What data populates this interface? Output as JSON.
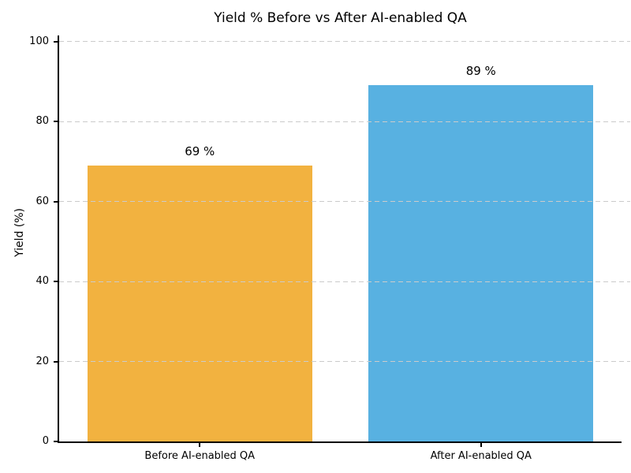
{
  "chart_data": {
    "type": "bar",
    "title": "Yield % Before vs After AI-enabled QA",
    "ylabel": "Yield (%)",
    "xlabel": "",
    "categories": [
      "Before AI-enabled QA",
      "After AI-enabled QA"
    ],
    "values": [
      69,
      89
    ],
    "value_labels": [
      "69 %",
      "89 %"
    ],
    "bar_colors": [
      "#F2B240",
      "#58B1E1"
    ],
    "yticks": [
      0,
      20,
      40,
      60,
      80,
      100
    ],
    "ylim": [
      0,
      101.5
    ],
    "grid": "horizontal-dashed",
    "grid_color": "#CBCBCB",
    "axis_color": "#000000",
    "background": "#FFFFFF",
    "legend_position": "none"
  }
}
